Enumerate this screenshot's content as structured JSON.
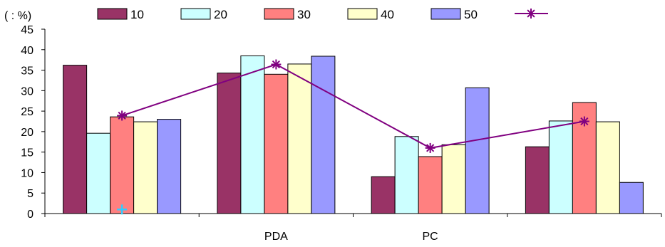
{
  "unit_label": "(    : %)",
  "chart_data": {
    "type": "bar",
    "categories": [
      "",
      "PDA",
      "PC",
      ""
    ],
    "series": [
      {
        "name": "10",
        "values": [
          36.2,
          34.3,
          9.0,
          16.3
        ],
        "color": "#993366"
      },
      {
        "name": "20",
        "values": [
          19.6,
          38.5,
          18.8,
          22.6
        ],
        "color": "#ccffff"
      },
      {
        "name": "30",
        "values": [
          23.6,
          34.0,
          13.9,
          27.1
        ],
        "color": "#ff8080"
      },
      {
        "name": "40",
        "values": [
          22.4,
          36.5,
          16.8,
          22.4
        ],
        "color": "#ffffcc"
      },
      {
        "name": "50",
        "values": [
          23.0,
          38.4,
          30.7,
          7.6
        ],
        "color": "#9999ff"
      }
    ],
    "line_series": {
      "name": "",
      "values": [
        23.9,
        36.4,
        16.0,
        22.5
      ],
      "color": "#800080",
      "marker": "asterisk"
    },
    "extra_marker": {
      "category_index": 0,
      "value": 1.0,
      "color": "#33ccff",
      "marker": "plus"
    },
    "ylim": [
      0,
      45
    ],
    "yticks": [
      0,
      5,
      10,
      15,
      20,
      25,
      30,
      35,
      40,
      45
    ],
    "grid": false,
    "legend_position": "top"
  }
}
